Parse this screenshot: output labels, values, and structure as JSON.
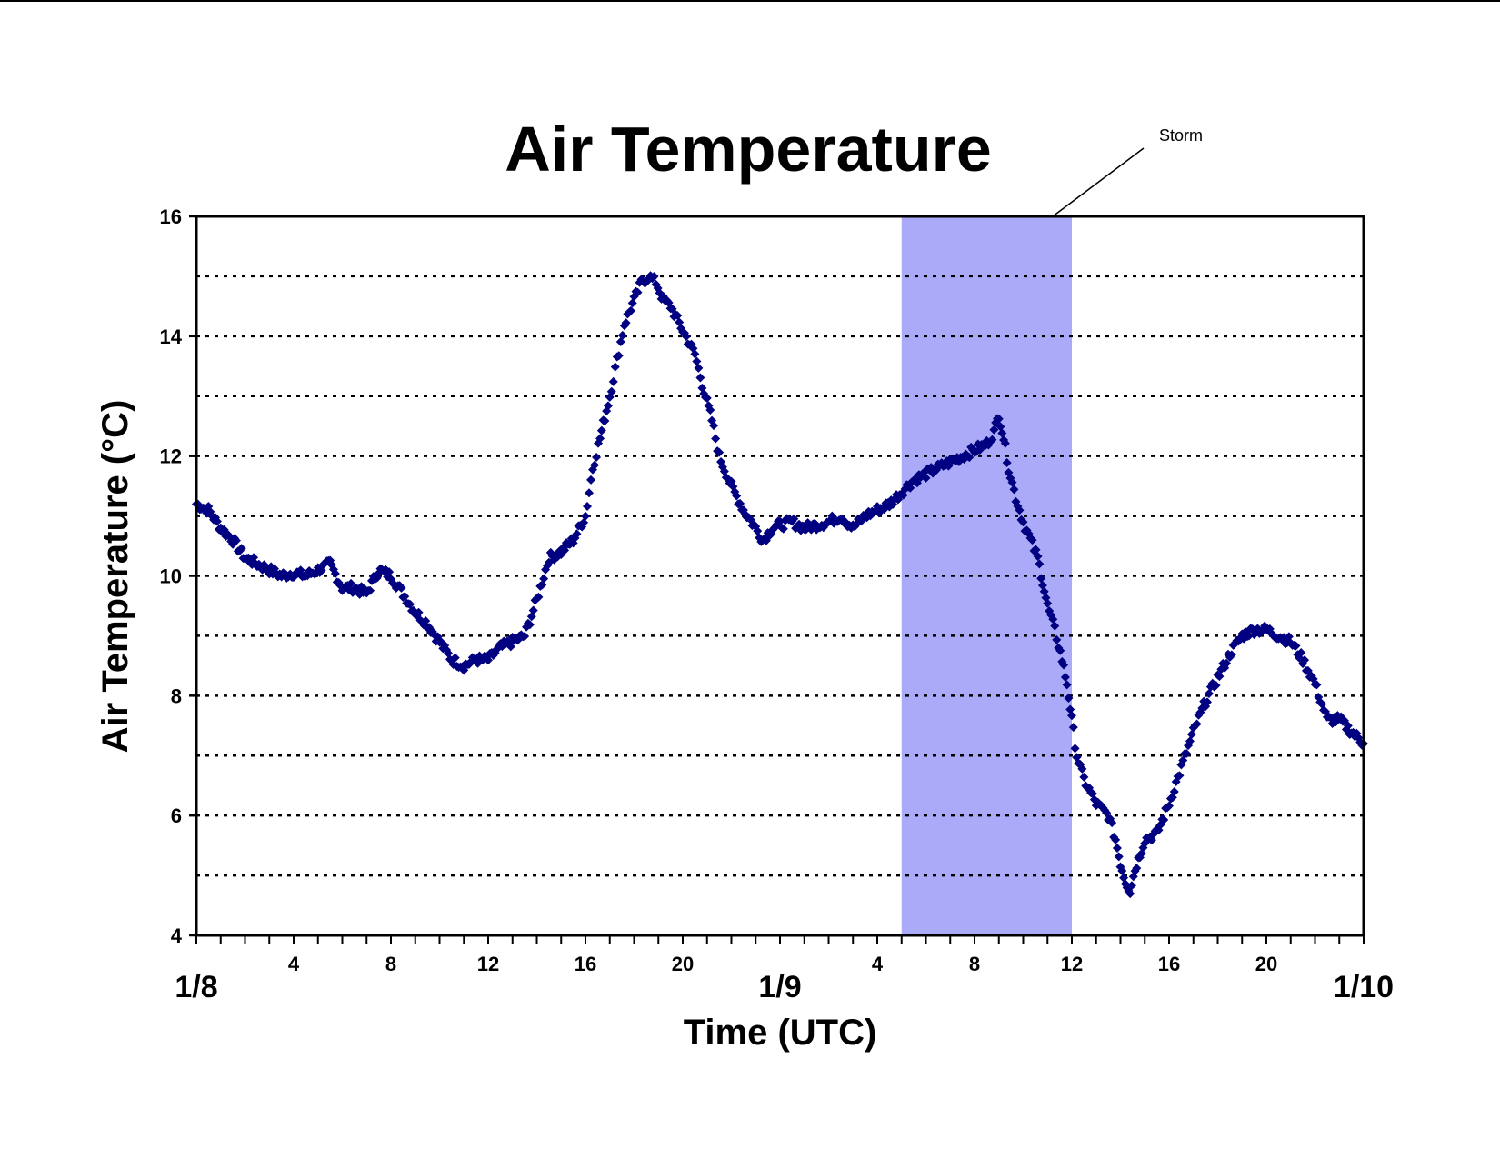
{
  "chart_data": {
    "type": "scatter",
    "title": "Air Temperature",
    "xlabel": "Time (UTC)",
    "ylabel": "Air Temperature (°C)",
    "ylim": [
      4,
      16
    ],
    "xlim_hours": [
      0,
      48
    ],
    "yticks": [
      "4",
      "6",
      "8",
      "10",
      "12",
      "14",
      "16"
    ],
    "grid": "dotted horizontal lines at every 1 °C",
    "x_ticks": [
      {
        "hour": 0,
        "label": "1/8",
        "major": true
      },
      {
        "hour": 4,
        "label": "4"
      },
      {
        "hour": 8,
        "label": "8"
      },
      {
        "hour": 12,
        "label": "12"
      },
      {
        "hour": 16,
        "label": "16"
      },
      {
        "hour": 20,
        "label": "20"
      },
      {
        "hour": 24,
        "label": "1/9",
        "major": true
      },
      {
        "hour": 28,
        "label": "4"
      },
      {
        "hour": 32,
        "label": "8"
      },
      {
        "hour": 36,
        "label": "12"
      },
      {
        "hour": 40,
        "label": "16"
      },
      {
        "hour": 44,
        "label": "20"
      },
      {
        "hour": 48,
        "label": "1/10",
        "major": true
      }
    ],
    "annotation": {
      "label": "Storm",
      "x_start_hour": 29,
      "x_end_hour": 36,
      "color": "#aaaaf8"
    },
    "marker_color": "#000080",
    "series": [
      {
        "points": [
          [
            0.0,
            11.2
          ],
          [
            0.5,
            11.1
          ],
          [
            1.0,
            10.8
          ],
          [
            1.5,
            10.6
          ],
          [
            2.0,
            10.3
          ],
          [
            2.5,
            10.2
          ],
          [
            3.0,
            10.1
          ],
          [
            3.5,
            10.0
          ],
          [
            4.0,
            10.05
          ],
          [
            4.5,
            10.0
          ],
          [
            5.0,
            10.1
          ],
          [
            5.5,
            10.2
          ],
          [
            6.0,
            9.8
          ],
          [
            6.5,
            9.8
          ],
          [
            7.0,
            9.7
          ],
          [
            7.5,
            10.1
          ],
          [
            8.0,
            10.0
          ],
          [
            8.5,
            9.7
          ],
          [
            9.0,
            9.4
          ],
          [
            9.5,
            9.2
          ],
          [
            10.0,
            8.9
          ],
          [
            10.5,
            8.6
          ],
          [
            11.0,
            8.5
          ],
          [
            11.5,
            8.6
          ],
          [
            12.0,
            8.6
          ],
          [
            12.5,
            8.8
          ],
          [
            13.0,
            8.9
          ],
          [
            13.5,
            9.0
          ],
          [
            14.0,
            9.6
          ],
          [
            14.5,
            10.3
          ],
          [
            15.0,
            10.4
          ],
          [
            15.5,
            10.6
          ],
          [
            16.0,
            11.0
          ],
          [
            16.3,
            11.8
          ],
          [
            16.6,
            12.3
          ],
          [
            17.0,
            13.0
          ],
          [
            17.3,
            13.6
          ],
          [
            17.6,
            14.2
          ],
          [
            18.0,
            14.6
          ],
          [
            18.3,
            14.9
          ],
          [
            18.6,
            15.0
          ],
          [
            18.9,
            14.9
          ],
          [
            19.2,
            14.6
          ],
          [
            19.5,
            14.5
          ],
          [
            20.0,
            14.1
          ],
          [
            20.5,
            13.7
          ],
          [
            20.8,
            13.2
          ],
          [
            21.2,
            12.6
          ],
          [
            21.5,
            12.0
          ],
          [
            22.0,
            11.5
          ],
          [
            22.5,
            11.1
          ],
          [
            23.0,
            10.8
          ],
          [
            23.3,
            10.6
          ],
          [
            23.7,
            10.8
          ],
          [
            24.0,
            10.85
          ],
          [
            24.5,
            10.9
          ],
          [
            25.0,
            10.8
          ],
          [
            25.5,
            10.85
          ],
          [
            26.0,
            10.9
          ],
          [
            26.5,
            11.0
          ],
          [
            27.0,
            10.8
          ],
          [
            27.5,
            11.0
          ],
          [
            28.0,
            11.1
          ],
          [
            28.5,
            11.2
          ],
          [
            29.0,
            11.4
          ],
          [
            29.5,
            11.6
          ],
          [
            30.0,
            11.7
          ],
          [
            30.5,
            11.8
          ],
          [
            31.0,
            11.9
          ],
          [
            31.5,
            12.0
          ],
          [
            32.0,
            12.1
          ],
          [
            32.5,
            12.2
          ],
          [
            32.8,
            12.4
          ],
          [
            33.0,
            12.7
          ],
          [
            33.2,
            12.3
          ],
          [
            33.4,
            11.8
          ],
          [
            33.7,
            11.3
          ],
          [
            34.0,
            10.9
          ],
          [
            34.3,
            10.6
          ],
          [
            34.6,
            10.3
          ],
          [
            35.0,
            9.5
          ],
          [
            35.3,
            9.1
          ],
          [
            35.6,
            8.6
          ],
          [
            35.8,
            8.2
          ],
          [
            36.0,
            7.6
          ],
          [
            36.2,
            7.0
          ],
          [
            36.5,
            6.6
          ],
          [
            37.0,
            6.2
          ],
          [
            37.5,
            6.0
          ],
          [
            37.8,
            5.6
          ],
          [
            38.0,
            5.2
          ],
          [
            38.2,
            4.9
          ],
          [
            38.4,
            4.75
          ],
          [
            38.6,
            5.1
          ],
          [
            39.0,
            5.6
          ],
          [
            39.5,
            5.7
          ],
          [
            40.0,
            6.2
          ],
          [
            40.5,
            6.8
          ],
          [
            41.0,
            7.4
          ],
          [
            41.5,
            7.9
          ],
          [
            42.0,
            8.3
          ],
          [
            42.5,
            8.7
          ],
          [
            43.0,
            9.0
          ],
          [
            43.5,
            9.1
          ],
          [
            44.0,
            9.1
          ],
          [
            44.5,
            9.0
          ],
          [
            45.0,
            8.9
          ],
          [
            45.5,
            8.6
          ],
          [
            46.0,
            8.2
          ],
          [
            46.5,
            7.6
          ],
          [
            47.0,
            7.6
          ],
          [
            47.5,
            7.4
          ],
          [
            48.0,
            7.2
          ]
        ]
      }
    ]
  }
}
